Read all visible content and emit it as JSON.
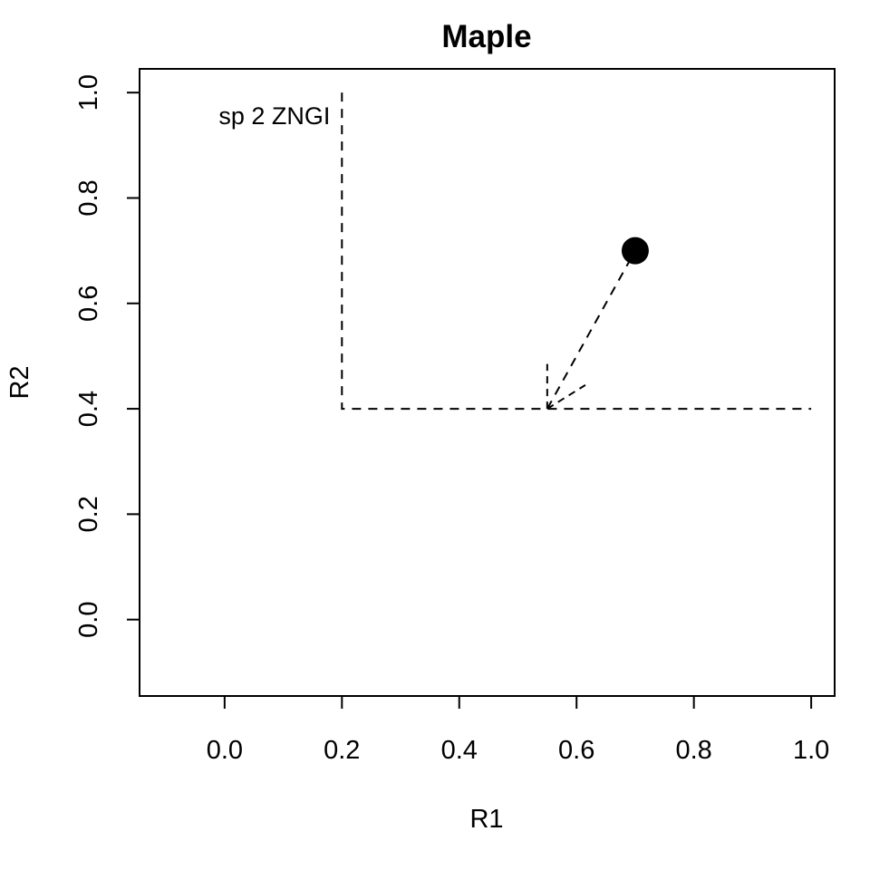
{
  "chart_data": {
    "type": "line",
    "title": "Maple",
    "xlabel": "R1",
    "ylabel": "R2",
    "xlim": [
      -0.145,
      1.04
    ],
    "ylim": [
      -0.145,
      1.045
    ],
    "x_ticks": [
      0.0,
      0.2,
      0.4,
      0.6,
      0.8,
      1.0
    ],
    "y_ticks": [
      0.0,
      0.2,
      0.4,
      0.6,
      0.8,
      1.0
    ],
    "x_tick_labels": [
      "0.0",
      "0.2",
      "0.4",
      "0.6",
      "0.8",
      "1.0"
    ],
    "y_tick_labels": [
      "0.0",
      "0.2",
      "0.4",
      "0.6",
      "0.8",
      "1.0"
    ],
    "grid": false,
    "zngi": {
      "label": "sp 2 ZNGI",
      "points": [
        [
          0.2,
          1.0
        ],
        [
          0.2,
          0.4
        ],
        [
          1.0,
          0.4
        ]
      ],
      "line_style": "dashed"
    },
    "consumption_vector": {
      "from": [
        0.55,
        0.4
      ],
      "to": [
        0.7,
        0.7
      ],
      "line_style": "dashed"
    },
    "arrow_heads": [
      {
        "from": [
          0.55,
          0.4
        ],
        "to": [
          0.55,
          0.485
        ]
      },
      {
        "from": [
          0.55,
          0.4
        ],
        "to": [
          0.615,
          0.445
        ]
      }
    ],
    "supply_point": {
      "x": 0.7,
      "y": 0.7,
      "marker": "filled-circle"
    },
    "colors": {
      "line": "#000000",
      "point": "#000000",
      "background": "#ffffff"
    }
  }
}
